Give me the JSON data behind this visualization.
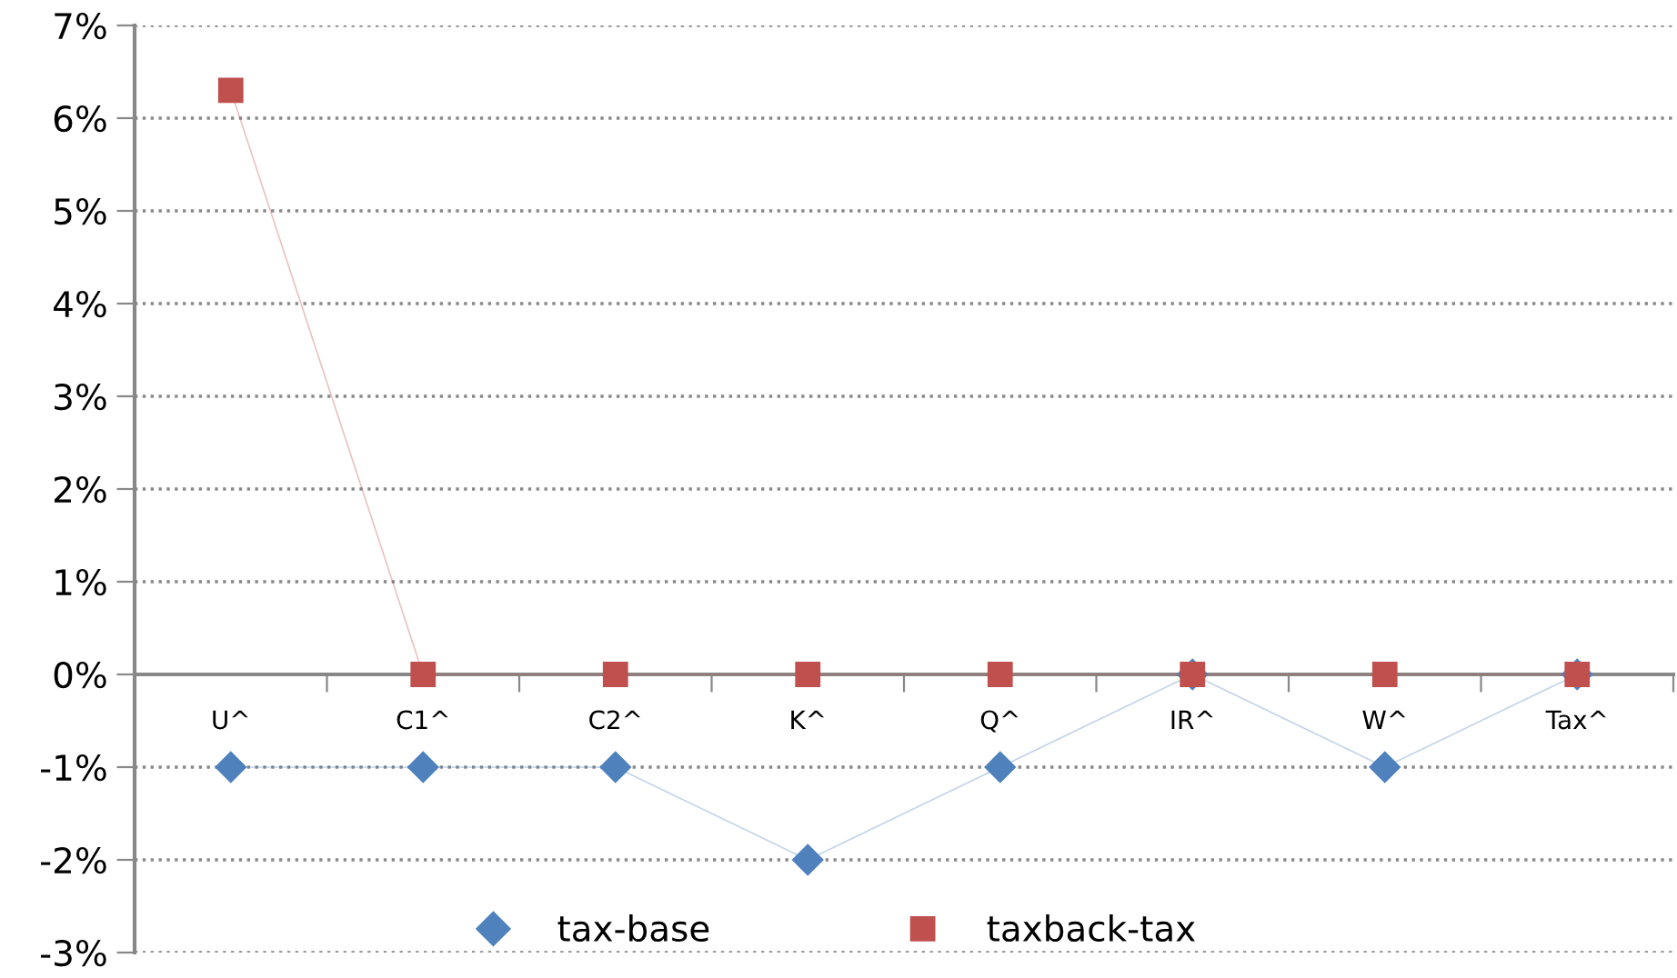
{
  "chart_data": {
    "type": "line",
    "categories": [
      "U^",
      "C1^",
      "C2^",
      "K^",
      "Q^",
      "IR^",
      "W^",
      "Tax^"
    ],
    "series": [
      {
        "name": "tax-base",
        "color": "#4f81bd",
        "marker": "diamond",
        "values": [
          -1,
          -1,
          -1,
          -2,
          -1,
          0,
          -1,
          0
        ]
      },
      {
        "name": "taxback-tax",
        "color": "#c0504d",
        "marker": "square",
        "values": [
          6.3,
          0,
          0,
          0,
          0,
          0,
          0,
          0
        ]
      }
    ],
    "ylim": [
      -3,
      7
    ],
    "yticks": [
      {
        "value": -3,
        "label": "-3%"
      },
      {
        "value": -2,
        "label": "-2%"
      },
      {
        "value": -1,
        "label": "-1%"
      },
      {
        "value": 0,
        "label": "0%"
      },
      {
        "value": 1,
        "label": "1%"
      },
      {
        "value": 2,
        "label": "2%"
      },
      {
        "value": 3,
        "label": "3%"
      },
      {
        "value": 4,
        "label": "4%"
      },
      {
        "value": 5,
        "label": "5%"
      },
      {
        "value": 6,
        "label": "6%"
      },
      {
        "value": 7,
        "label": "7%"
      }
    ],
    "grid": "y",
    "legend": "bottom"
  }
}
